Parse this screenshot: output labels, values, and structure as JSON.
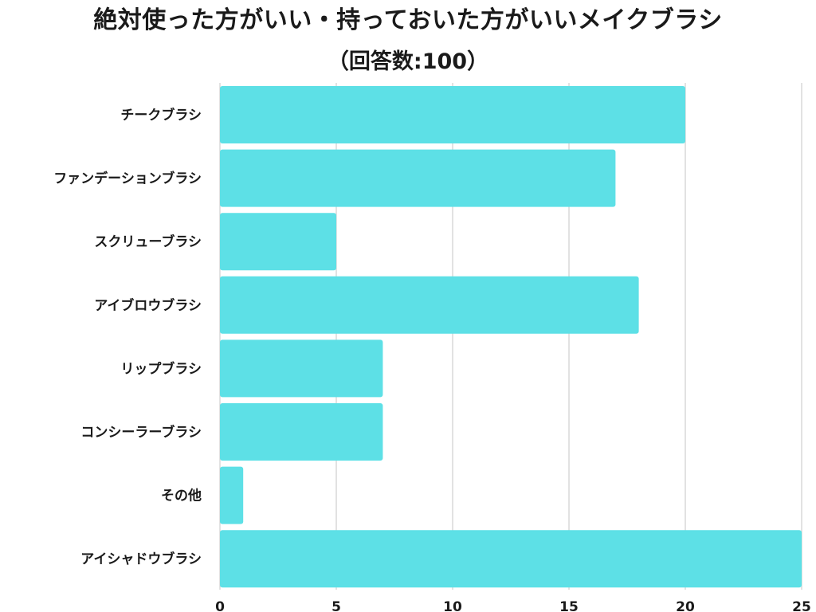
{
  "chart_data": {
    "type": "bar",
    "orientation": "horizontal",
    "title": "絶対使った方がいい・持っておいた方がいいメイクブラシ",
    "subtitle": "（回答数:100）",
    "categories": [
      "チークブラシ",
      "ファンデーションブラシ",
      "スクリューブラシ",
      "アイブロウブラシ",
      "リップブラシ",
      "コンシーラーブラシ",
      "その他",
      "アイシャドウブラシ"
    ],
    "values": [
      20,
      17,
      5,
      18,
      7,
      7,
      1,
      25
    ],
    "xlim": [
      0,
      25
    ],
    "xticks": [
      0,
      5,
      10,
      15,
      20,
      25
    ],
    "xlabel": "",
    "ylabel": "",
    "grid": "vertical",
    "legend": "none",
    "bar_color": "#5de0e6",
    "grid_color": "#d9d9d9",
    "text_color": "#1a1a1a"
  }
}
